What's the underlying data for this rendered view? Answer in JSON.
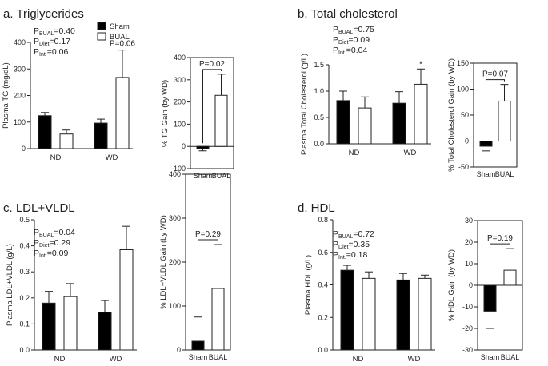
{
  "chart_data": [
    {
      "type": "bar",
      "panel": "a",
      "title": "a. Triglycerides",
      "ylabel": "Plasma TG (mg/dL)",
      "ylim": [
        0,
        400
      ],
      "yticks": [
        0,
        100,
        200,
        300,
        400
      ],
      "categories": [
        "ND",
        "WD"
      ],
      "series": [
        {
          "name": "Sham",
          "values": [
            124,
            96
          ],
          "errors": [
            12,
            15
          ]
        },
        {
          "name": "BUAL",
          "values": [
            55,
            268
          ],
          "errors": [
            15,
            103
          ]
        }
      ],
      "stats": [
        {
          "p": "P",
          "sub": "BUAL",
          "val": "=0.40"
        },
        {
          "p": "P",
          "sub": "Diet",
          "val": "=0.17"
        },
        {
          "p": "P",
          "sub": "Int.",
          "val": "=0.06"
        }
      ],
      "annotation": "P=0.06",
      "gain": {
        "ylabel": "% TG Gain (by WD)",
        "ylim": [
          -100,
          400
        ],
        "yticks": [
          -100,
          0,
          100,
          200,
          300,
          400
        ],
        "categories": [
          "Sham",
          "BUAL"
        ],
        "values": [
          -10,
          230
        ],
        "errors": [
          10,
          95
        ],
        "p": "P=0.02"
      }
    },
    {
      "type": "bar",
      "panel": "b",
      "title": "b. Total cholesterol",
      "ylabel": "Plasma Total Cholesterol (g/L)",
      "ylim": [
        0,
        1.5
      ],
      "yticks": [
        0.0,
        0.5,
        1.0,
        1.5
      ],
      "categories": [
        "ND",
        "WD"
      ],
      "series": [
        {
          "name": "Sham",
          "values": [
            0.82,
            0.77
          ],
          "errors": [
            0.18,
            0.22
          ]
        },
        {
          "name": "BUAL",
          "values": [
            0.68,
            1.13
          ],
          "errors": [
            0.21,
            0.29
          ]
        }
      ],
      "stats": [
        {
          "p": "P",
          "sub": "BUAL",
          "val": "=0.75"
        },
        {
          "p": "P",
          "sub": "Diet",
          "val": "=0.09"
        },
        {
          "p": "P",
          "sub": "Int.",
          "val": "=0.04"
        }
      ],
      "annotation": "*",
      "gain": {
        "ylabel": "% Total Cholesterol Gain (by WD)",
        "ylim": [
          -50,
          150
        ],
        "yticks": [
          -50,
          0,
          50,
          100,
          150
        ],
        "categories": [
          "Sham",
          "BUAL"
        ],
        "values": [
          -10,
          77
        ],
        "errors": [
          9,
          32
        ],
        "p": "P=0.07"
      }
    },
    {
      "type": "bar",
      "panel": "c",
      "title": "c. LDL+VLDL",
      "ylabel": "Plasma LDL+VLDL (g/L)",
      "ylim": [
        0,
        0.5
      ],
      "yticks": [
        0.0,
        0.1,
        0.2,
        0.3,
        0.4,
        0.5
      ],
      "categories": [
        "ND",
        "WD"
      ],
      "series": [
        {
          "name": "Sham",
          "values": [
            0.18,
            0.145
          ],
          "errors": [
            0.045,
            0.045
          ]
        },
        {
          "name": "BUAL",
          "values": [
            0.205,
            0.385
          ],
          "errors": [
            0.05,
            0.09
          ]
        }
      ],
      "stats": [
        {
          "p": "P",
          "sub": "BUAL",
          "val": "=0.04"
        },
        {
          "p": "P",
          "sub": "Diet",
          "val": "=0.29"
        },
        {
          "p": "P",
          "sub": "Int.",
          "val": "=0.09"
        }
      ],
      "annotation": "",
      "gain": {
        "ylabel": "% LDL+VLDL Gain (by WD)",
        "ylim": [
          0,
          400
        ],
        "yticks": [
          0,
          100,
          200,
          300,
          400
        ],
        "categories": [
          "Sham",
          "BUAL"
        ],
        "values": [
          20,
          140
        ],
        "errors": [
          55,
          100
        ],
        "p": "P=0.29"
      }
    },
    {
      "type": "bar",
      "panel": "d",
      "title": "d. HDL",
      "ylabel": "Plasma HDL (g/L)",
      "ylim": [
        0,
        0.8
      ],
      "yticks": [
        0.0,
        0.2,
        0.4,
        0.6,
        0.8
      ],
      "categories": [
        "ND",
        "WD"
      ],
      "series": [
        {
          "name": "Sham",
          "values": [
            0.49,
            0.43
          ],
          "errors": [
            0.03,
            0.04
          ]
        },
        {
          "name": "BUAL",
          "values": [
            0.44,
            0.44
          ],
          "errors": [
            0.04,
            0.02
          ]
        }
      ],
      "stats": [
        {
          "p": "P",
          "sub": "BUAL",
          "val": "=0.72"
        },
        {
          "p": "P",
          "sub": "Diet",
          "val": "=0.35"
        },
        {
          "p": "P",
          "sub": "Int.",
          "val": "=0.18"
        }
      ],
      "annotation": "",
      "gain": {
        "ylabel": "% HDL Gain (by WD)",
        "ylim": [
          -30,
          30
        ],
        "yticks": [
          -30,
          -20,
          -10,
          0,
          10,
          20,
          30
        ],
        "categories": [
          "Sham",
          "BUAL"
        ],
        "values": [
          -12,
          7
        ],
        "errors": [
          8,
          10
        ],
        "p": "P=0.19"
      }
    }
  ],
  "legend": {
    "items": [
      "Sham",
      "BUAL"
    ]
  },
  "colors": {
    "sham": "#000000",
    "bual": "#ffffff",
    "stroke": "#222222"
  }
}
